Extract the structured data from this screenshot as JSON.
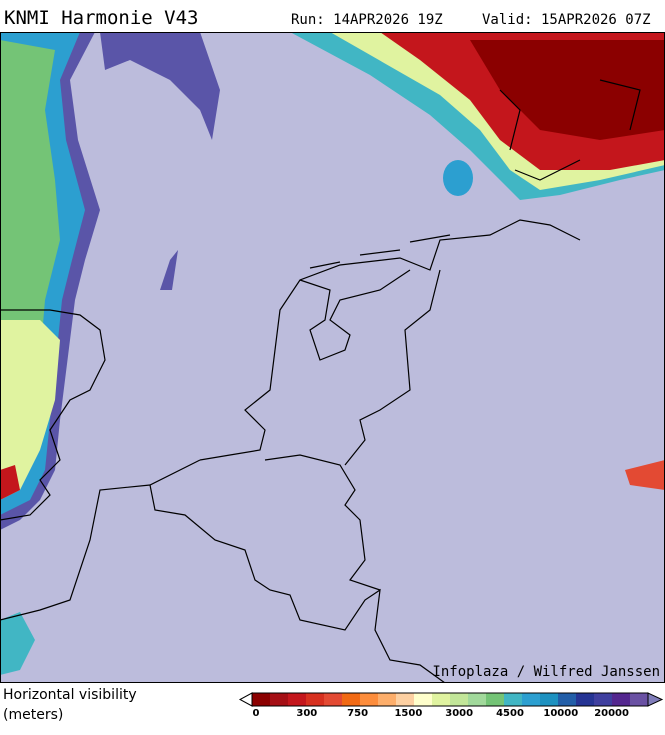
{
  "header": {
    "title": "KNMI Harmonie V43",
    "run": "Run: 14APR2026 19Z",
    "valid": "Valid: 15APR2026 07Z"
  },
  "map": {
    "credit": "Infoplaza / Wilfred Janssen"
  },
  "legend": {
    "label_lines": [
      "Horizontal visibility",
      "(meters)"
    ],
    "ticks": [
      "0",
      "300",
      "750",
      "1500",
      "3000",
      "4500",
      "10000",
      "20000"
    ]
  }
}
